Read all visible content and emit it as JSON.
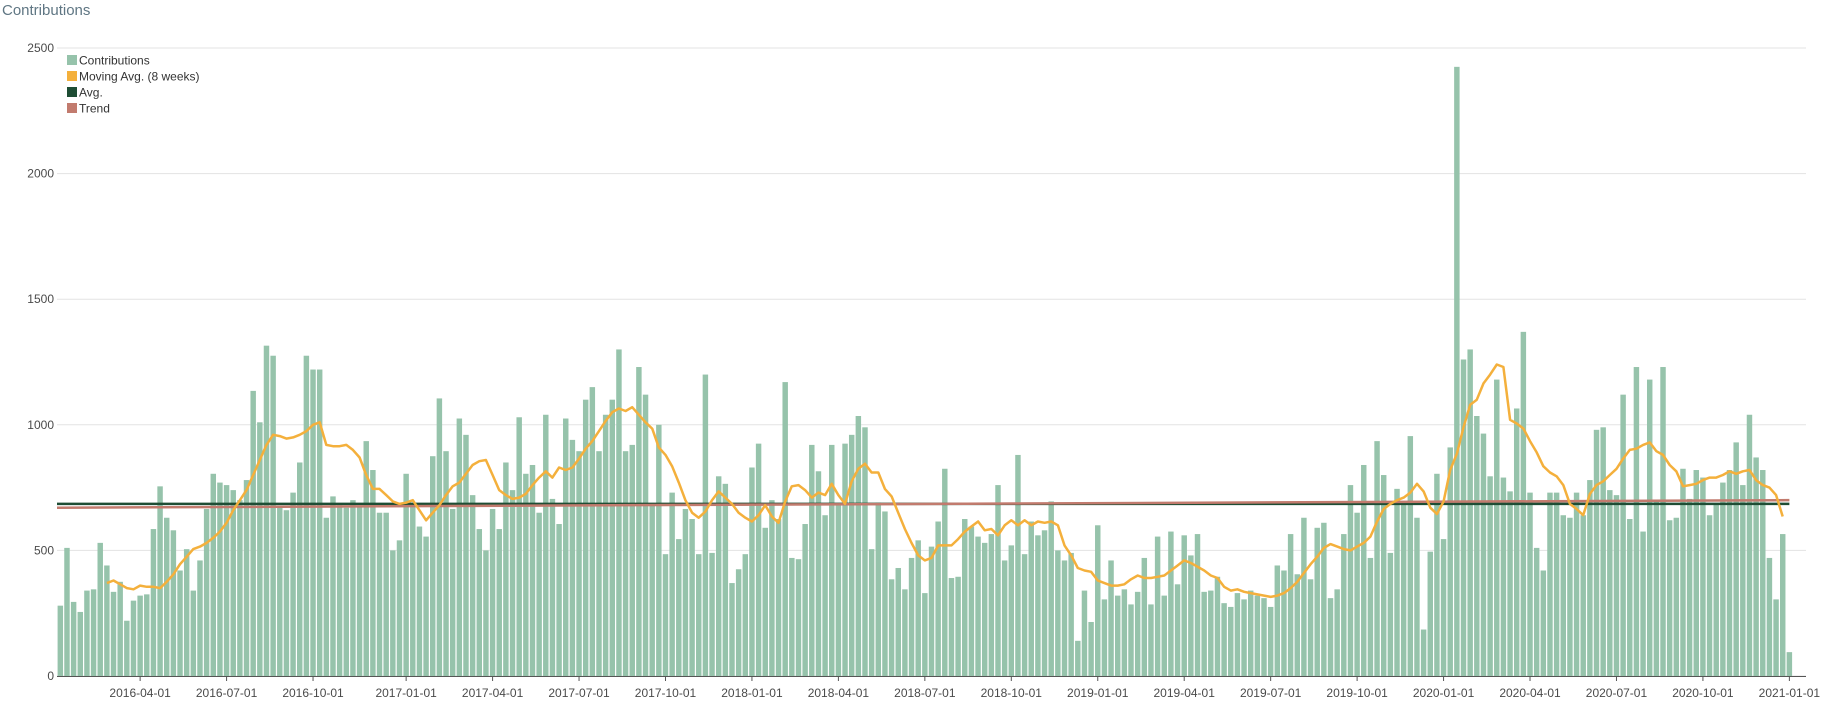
{
  "page": {
    "title": "Contributions"
  },
  "colors": {
    "contributions": "#96c3ab",
    "moving_avg": "#f4b03c",
    "avg": "#1e4d34",
    "trend": "#c27b6e",
    "grid": "#e3e3e3",
    "axis": "#555555"
  },
  "chart_data": {
    "type": "bar",
    "title": "",
    "xlabel": "",
    "ylabel": "",
    "ylim": [
      0,
      2500
    ],
    "y_ticks": [
      0,
      500,
      1000,
      1500,
      2000,
      2500
    ],
    "y_tick_labels": [
      "0",
      "500",
      "1000",
      "1500",
      "2000",
      "2500"
    ],
    "x_ticks": [
      "2016-04-01",
      "2016-07-01",
      "2016-10-01",
      "2017-01-01",
      "2017-04-01",
      "2017-07-01",
      "2017-10-01",
      "2018-01-01",
      "2018-04-01",
      "2018-07-01",
      "2018-10-01",
      "2019-01-01",
      "2019-04-01",
      "2019-07-01",
      "2019-10-01",
      "2020-01-01",
      "2020-04-01",
      "2020-07-01",
      "2020-10-01",
      "2021-01-01"
    ],
    "week_axis": {
      "first_week": "2016-01-04",
      "tick_week_index": [
        12,
        25,
        38,
        52,
        65,
        78,
        91,
        104,
        117,
        130,
        143,
        156,
        169,
        182,
        195,
        208,
        221,
        234,
        247,
        260
      ],
      "x_domain": [
        -0.5,
        262.5
      ]
    },
    "legend": {
      "placement": "top-left",
      "items": [
        {
          "key": "contributions",
          "label": "Contributions"
        },
        {
          "key": "moving_avg",
          "label": "Moving Avg. (8 weeks)"
        },
        {
          "key": "avg",
          "label": "Avg."
        },
        {
          "key": "trend",
          "label": "Trend"
        }
      ]
    },
    "series": [
      {
        "name": "Contributions",
        "type": "bar",
        "values": [
          280,
          510,
          295,
          255,
          340,
          345,
          530,
          440,
          335,
          375,
          220,
          300,
          320,
          325,
          585,
          755,
          630,
          580,
          420,
          505,
          340,
          460,
          665,
          805,
          770,
          760,
          740,
          700,
          780,
          1135,
          1010,
          1315,
          1275,
          670,
          660,
          730,
          850,
          1275,
          1220,
          1220,
          630,
          715,
          680,
          670,
          700,
          675,
          935,
          820,
          650,
          650,
          500,
          540,
          805,
          690,
          595,
          555,
          875,
          1105,
          895,
          665,
          1025,
          960,
          720,
          585,
          500,
          665,
          585,
          850,
          740,
          1030,
          805,
          840,
          650,
          1040,
          705,
          605,
          1025,
          940,
          895,
          1100,
          1150,
          895,
          1040,
          1100,
          1300,
          895,
          920,
          1230,
          1120,
          680,
          1000,
          485,
          730,
          545,
          665,
          625,
          485,
          1200,
          490,
          795,
          765,
          370,
          425,
          485,
          830,
          925,
          590,
          700,
          625,
          1170,
          470,
          465,
          605,
          920,
          815,
          640,
          920,
          685,
          925,
          960,
          1035,
          990,
          505,
          690,
          655,
          385,
          430,
          345,
          470,
          540,
          330,
          515,
          615,
          825,
          390,
          395,
          625,
          595,
          555,
          530,
          565,
          760,
          460,
          520,
          880,
          485,
          615,
          560,
          580,
          695,
          500,
          460,
          490,
          140,
          340,
          215,
          600,
          305,
          460,
          320,
          345,
          285,
          335,
          470,
          285,
          555,
          320,
          575,
          365,
          560,
          480,
          565,
          335,
          340,
          395,
          290,
          275,
          330,
          305,
          340,
          320,
          310,
          275,
          440,
          420,
          565,
          405,
          630,
          385,
          590,
          610,
          310,
          345,
          565,
          760,
          650,
          840,
          470,
          935,
          800,
          490,
          745,
          685,
          955,
          630,
          185,
          495,
          805,
          545,
          910,
          2425,
          1260,
          1300,
          1035,
          965,
          795,
          1180,
          790,
          735,
          1065,
          1370,
          730,
          510,
          420,
          730,
          730,
          640,
          630,
          730,
          640,
          780,
          980,
          990,
          740,
          720,
          1120,
          625,
          1230,
          575,
          1180,
          700,
          1230,
          620,
          630,
          825,
          705,
          820,
          790,
          640,
          685,
          770,
          820,
          930,
          760,
          1040,
          870,
          820,
          470,
          305,
          565,
          95
        ]
      },
      {
        "name": "Moving Avg. (8 weeks)",
        "type": "line",
        "start_index": 7,
        "values": [
          370,
          380,
          365,
          350,
          345,
          360,
          355,
          355,
          350,
          375,
          405,
          445,
          475,
          505,
          515,
          530,
          550,
          575,
          610,
          660,
          700,
          740,
          800,
          860,
          920,
          960,
          955,
          945,
          950,
          960,
          975,
          1000,
          1010,
          920,
          915,
          915,
          920,
          900,
          870,
          800,
          745,
          745,
          720,
          695,
          685,
          690,
          700,
          660,
          620,
          650,
          680,
          720,
          755,
          770,
          805,
          840,
          855,
          860,
          800,
          740,
          720,
          705,
          710,
          725,
          760,
          790,
          815,
          790,
          830,
          820,
          830,
          865,
          905,
          935,
          975,
          1015,
          1050,
          1065,
          1055,
          1070,
          1040,
          1010,
          985,
          910,
          880,
          835,
          770,
          700,
          650,
          630,
          655,
          700,
          735,
          710,
          685,
          650,
          630,
          615,
          640,
          680,
          635,
          610,
          695,
          755,
          760,
          740,
          710,
          730,
          720,
          765,
          720,
          685,
          775,
          825,
          845,
          810,
          810,
          745,
          715,
          650,
          585,
          530,
          480,
          460,
          470,
          520,
          520,
          520,
          545,
          575,
          595,
          615,
          580,
          585,
          560,
          600,
          620,
          600,
          620,
          600,
          615,
          610,
          615,
          600,
          520,
          480,
          430,
          420,
          415,
          380,
          370,
          360,
          360,
          365,
          385,
          400,
          390,
          390,
          395,
          400,
          420,
          440,
          460,
          450,
          435,
          420,
          400,
          390,
          355,
          340,
          345,
          335,
          330,
          325,
          320,
          315,
          320,
          330,
          350,
          375,
          410,
          445,
          475,
          510,
          525,
          515,
          505,
          500,
          515,
          530,
          555,
          615,
          665,
          685,
          700,
          710,
          730,
          765,
          735,
          670,
          645,
          695,
          820,
          885,
          990,
          1080,
          1100,
          1165,
          1200,
          1240,
          1230,
          1020,
          1005,
          985,
          935,
          890,
          835,
          810,
          795,
          760,
          685,
          665,
          640,
          725,
          760,
          775,
          800,
          825,
          865,
          900,
          905,
          920,
          930,
          895,
          880,
          840,
          815,
          755,
          760,
          765,
          780,
          790,
          790,
          800,
          815,
          805,
          815,
          820,
          780,
          760,
          750,
          720,
          635
        ]
      },
      {
        "name": "Avg.",
        "type": "hline",
        "value": 685
      },
      {
        "name": "Trend",
        "type": "trendline",
        "start": 670,
        "end": 700
      }
    ]
  }
}
